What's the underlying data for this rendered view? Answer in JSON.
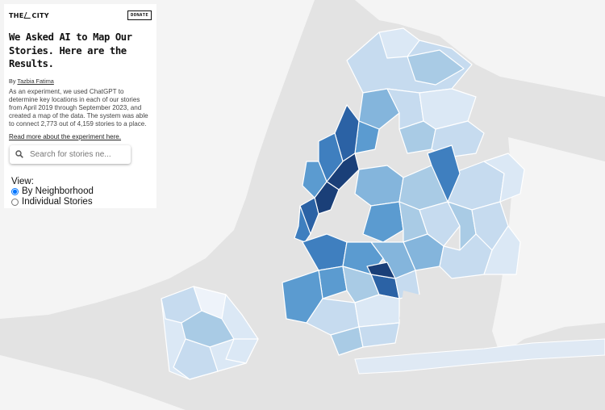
{
  "brand": {
    "logo_text": "THE CITY",
    "donate_label": "DONATE"
  },
  "article": {
    "title": "We Asked AI to Map Our Stories. Here are the Results.",
    "byline_prefix": "By",
    "author": "Tazbia Fatima",
    "description": "As an experiment, we used ChatGPT to determine key locations in each of our stories from April 2019 through September 2023, and created a map of the data. The system was able to connect 2,773 out of 4,159 stories to a place.",
    "read_more": "Read more about the experiment here."
  },
  "search": {
    "placeholder": "Search for stories ne..."
  },
  "view": {
    "label": "View:",
    "options": [
      {
        "label": "By Neighborhood",
        "checked": true
      },
      {
        "label": "Individual Stories",
        "checked": false
      }
    ]
  },
  "map": {
    "colors": {
      "water": "#e3e3e3",
      "land": "#f5f5f5",
      "choropleth_min": "#eef3fa",
      "choropleth_max": "#1a3f78"
    }
  }
}
